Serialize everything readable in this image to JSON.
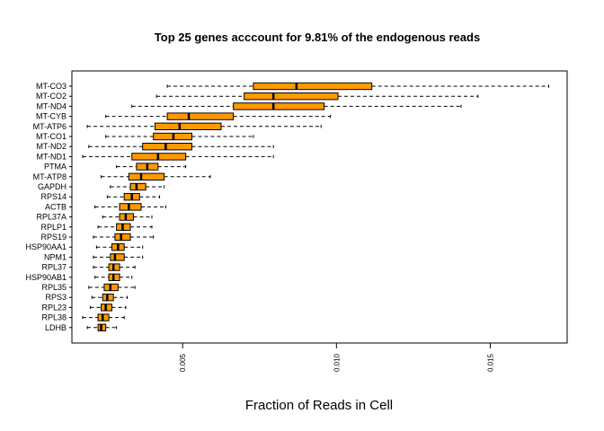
{
  "chart_data": {
    "type": "boxplot",
    "orientation": "horizontal",
    "title": "Top 25 genes acccount for 9.81% of the endogenous  reads",
    "xlabel": "Fraction of Reads in Cell",
    "ylabel": "",
    "xlim": [
      0.0014,
      0.0175
    ],
    "xticks": [
      0.005,
      0.01,
      0.015
    ],
    "xtick_labels": [
      "0.005",
      "0.010",
      "0.015"
    ],
    "box_color": "#FF9900",
    "median_color": "#000000",
    "grid": false,
    "genes": [
      {
        "name": "MT-CO3",
        "min": 0.0045,
        "q1": 0.0073,
        "median": 0.0087,
        "q3": 0.01115,
        "max": 0.0169
      },
      {
        "name": "MT-CO2",
        "min": 0.00415,
        "q1": 0.007,
        "median": 0.00795,
        "q3": 0.01005,
        "max": 0.0146
      },
      {
        "name": "MT-ND4",
        "min": 0.00335,
        "q1": 0.00665,
        "median": 0.00795,
        "q3": 0.0096,
        "max": 0.01405
      },
      {
        "name": "MT-CYB",
        "min": 0.0025,
        "q1": 0.0045,
        "median": 0.0052,
        "q3": 0.00665,
        "max": 0.0098
      },
      {
        "name": "MT-ATP6",
        "min": 0.0019,
        "q1": 0.0041,
        "median": 0.0049,
        "q3": 0.00625,
        "max": 0.0095
      },
      {
        "name": "MT-CO1",
        "min": 0.0025,
        "q1": 0.00405,
        "median": 0.0047,
        "q3": 0.0053,
        "max": 0.0073
      },
      {
        "name": "MT-ND2",
        "min": 0.00195,
        "q1": 0.0037,
        "median": 0.00445,
        "q3": 0.0053,
        "max": 0.00795
      },
      {
        "name": "MT-ND1",
        "min": 0.00175,
        "q1": 0.00335,
        "median": 0.0042,
        "q3": 0.0051,
        "max": 0.00795
      },
      {
        "name": "PTMA",
        "min": 0.00285,
        "q1": 0.0035,
        "median": 0.00385,
        "q3": 0.0042,
        "max": 0.0051
      },
      {
        "name": "MT-ATP8",
        "min": 0.00235,
        "q1": 0.00325,
        "median": 0.00365,
        "q3": 0.0044,
        "max": 0.0059
      },
      {
        "name": "GAPDH",
        "min": 0.00265,
        "q1": 0.0033,
        "median": 0.0035,
        "q3": 0.0038,
        "max": 0.0044
      },
      {
        "name": "RPS14",
        "min": 0.00255,
        "q1": 0.0031,
        "median": 0.00335,
        "q3": 0.0036,
        "max": 0.00425
      },
      {
        "name": "ACTB",
        "min": 0.00215,
        "q1": 0.00295,
        "median": 0.00325,
        "q3": 0.00365,
        "max": 0.00445
      },
      {
        "name": "RPL37A",
        "min": 0.0024,
        "q1": 0.00295,
        "median": 0.00315,
        "q3": 0.0034,
        "max": 0.004
      },
      {
        "name": "RPLP1",
        "min": 0.00225,
        "q1": 0.00285,
        "median": 0.00305,
        "q3": 0.0033,
        "max": 0.004
      },
      {
        "name": "RPS19",
        "min": 0.0021,
        "q1": 0.0028,
        "median": 0.003,
        "q3": 0.0033,
        "max": 0.00405
      },
      {
        "name": "HSP90AA1",
        "min": 0.0022,
        "q1": 0.0027,
        "median": 0.0029,
        "q3": 0.0031,
        "max": 0.0037
      },
      {
        "name": "NPM1",
        "min": 0.0021,
        "q1": 0.00265,
        "median": 0.0028,
        "q3": 0.0031,
        "max": 0.0037
      },
      {
        "name": "RPL37",
        "min": 0.0021,
        "q1": 0.0026,
        "median": 0.00275,
        "q3": 0.00295,
        "max": 0.00345
      },
      {
        "name": "HSP90AB1",
        "min": 0.00215,
        "q1": 0.0026,
        "median": 0.00275,
        "q3": 0.00295,
        "max": 0.00335
      },
      {
        "name": "RPL35",
        "min": 0.00195,
        "q1": 0.00245,
        "median": 0.00265,
        "q3": 0.0029,
        "max": 0.00345
      },
      {
        "name": "RPS3",
        "min": 0.00205,
        "q1": 0.0024,
        "median": 0.00255,
        "q3": 0.00275,
        "max": 0.0032
      },
      {
        "name": "RPL23",
        "min": 0.002,
        "q1": 0.00235,
        "median": 0.0025,
        "q3": 0.0027,
        "max": 0.00315
      },
      {
        "name": "RPL38",
        "min": 0.00175,
        "q1": 0.00225,
        "median": 0.0024,
        "q3": 0.0026,
        "max": 0.0031
      },
      {
        "name": "LDHB",
        "min": 0.0019,
        "q1": 0.00225,
        "median": 0.00235,
        "q3": 0.0025,
        "max": 0.00285
      }
    ]
  }
}
